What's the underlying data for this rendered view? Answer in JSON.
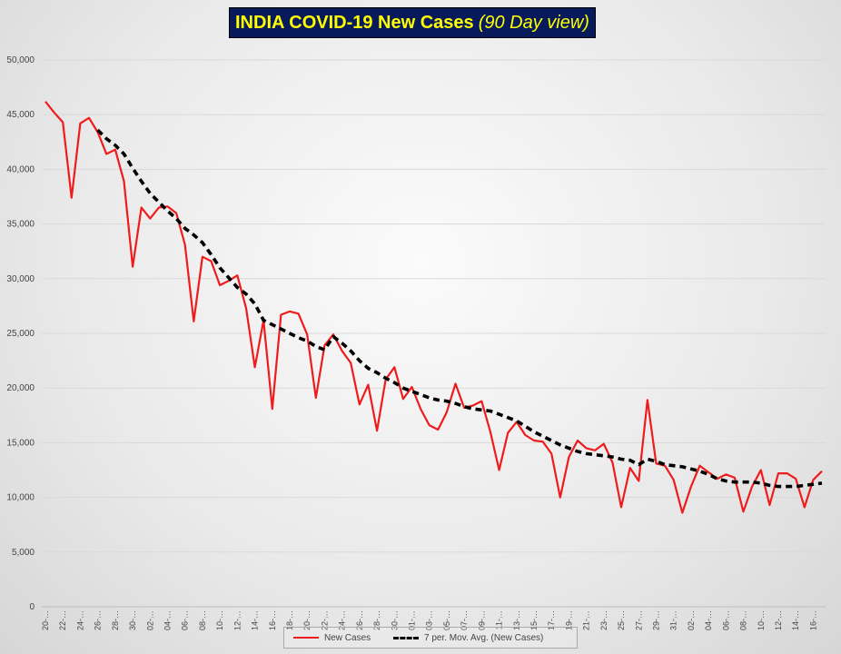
{
  "title": {
    "main": "INDIA COVID-19 New Cases",
    "sub": "(90 Day view)"
  },
  "colors": {
    "title_bg": "#061a5c",
    "title_text": "#ffff00",
    "new_cases": "#ee1c1c",
    "moving_avg": "#000000",
    "grid": "#d9d9d9"
  },
  "legend": {
    "new_cases": "New Cases",
    "moving_avg": "7 per. Mov. Avg. (New Cases)"
  },
  "chart_data": {
    "type": "line",
    "ylim": [
      0,
      50000
    ],
    "yticks": [
      0,
      5000,
      10000,
      15000,
      20000,
      25000,
      30000,
      35000,
      40000,
      45000,
      50000
    ],
    "ytick_labels": [
      "0",
      "5,000",
      "10,000",
      "15,000",
      "20,000",
      "25,000",
      "30,000",
      "35,000",
      "40,000",
      "45,000",
      "50,000"
    ],
    "xtick_labels": [
      "20-…",
      "22-…",
      "24-…",
      "26-…",
      "28-…",
      "30-…",
      "02-…",
      "04-…",
      "06-…",
      "08-…",
      "10-…",
      "12-…",
      "14-…",
      "16-…",
      "18-…",
      "20-…",
      "22-…",
      "24-…",
      "26-…",
      "28-…",
      "30-…",
      "01-…",
      "03-…",
      "05-…",
      "07-…",
      "09-…",
      "11-…",
      "13-…",
      "15-…",
      "17-…",
      "19-…",
      "21-…",
      "23-…",
      "25-…",
      "27-…",
      "29-…",
      "31-…",
      "02-…",
      "04-…",
      "06-…",
      "08-…",
      "10-…",
      "12-…",
      "14-…",
      "16-…"
    ],
    "grid": true,
    "legend_position": "bottom",
    "series": [
      {
        "name": "New Cases",
        "values": [
          46200,
          45200,
          44300,
          37400,
          44200,
          44700,
          43400,
          41400,
          41800,
          38900,
          31100,
          36500,
          35500,
          36500,
          36600,
          36000,
          33100,
          26100,
          32000,
          31600,
          29400,
          29800,
          30300,
          27300,
          21900,
          26200,
          18100,
          26700,
          27000,
          26800,
          24900,
          19100,
          23900,
          24900,
          23400,
          22300,
          18500,
          20300,
          16100,
          20800,
          21900,
          19000,
          20100,
          18100,
          16600,
          16200,
          17800,
          20400,
          18200,
          18400,
          18800,
          16000,
          12500,
          15900,
          16900,
          15700,
          15200,
          15100,
          14000,
          10000,
          13700,
          15200,
          14500,
          14300,
          14900,
          13200,
          9100,
          12700,
          11500,
          18900,
          13100,
          12900,
          11600,
          8600,
          11000,
          12900,
          12300,
          11700,
          12100,
          11800,
          8700,
          11000,
          12500,
          9300,
          12200,
          12200,
          11700,
          9100,
          11600,
          12400
        ]
      },
      {
        "name": "7 per. Mov. Avg. (New Cases)",
        "values": [
          null,
          null,
          null,
          null,
          null,
          null,
          43600,
          42800,
          42200,
          41400,
          40100,
          38900,
          37800,
          37000,
          36200,
          35500,
          34600,
          34000,
          33300,
          32200,
          31000,
          30100,
          29200,
          28600,
          27700,
          26200,
          25800,
          25400,
          25000,
          24600,
          24300,
          23800,
          23500,
          24700,
          24100,
          23400,
          22500,
          21800,
          21400,
          20900,
          20500,
          20000,
          19700,
          19400,
          19100,
          18900,
          18800,
          18600,
          18300,
          18100,
          18000,
          17900,
          17600,
          17300,
          17000,
          16500,
          16000,
          15600,
          15200,
          14800,
          14500,
          14200,
          14000,
          13900,
          13800,
          13700,
          13500,
          13400,
          13000,
          13500,
          13300,
          13000,
          12900,
          12800,
          12600,
          12400,
          12100,
          11700,
          11500,
          11400,
          11400,
          11400,
          11300,
          11100,
          11000,
          11000,
          11000,
          11100,
          11200,
          11300
        ]
      }
    ]
  }
}
